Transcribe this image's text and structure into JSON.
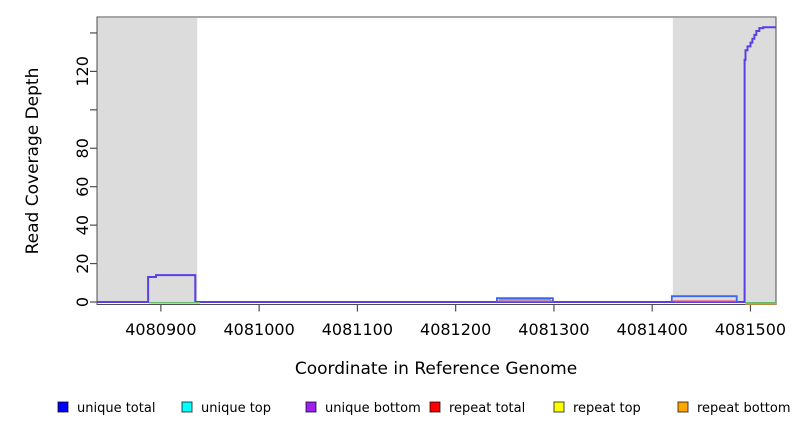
{
  "chart_data": {
    "type": "line",
    "title": "",
    "xlabel": "Coordinate in Reference Genome",
    "ylabel": "Read Coverage Depth",
    "xlim": [
      4080835,
      4081526
    ],
    "ylim": [
      -1.3,
      148.3
    ],
    "x_ticks": [
      4080900,
      4081000,
      4081100,
      4081200,
      4081300,
      4081400,
      4081500
    ],
    "y_ticks_all": [
      0,
      20,
      40,
      60,
      80,
      100,
      120,
      140
    ],
    "y_ticks_labeled": [
      0,
      20,
      40,
      60,
      80,
      120
    ],
    "grid": false,
    "background_color": "#ffffff",
    "frame_color": "#4d4d4d",
    "shaded_regions": {
      "color": "#dcdcdc",
      "comment": "repeat-masked flanking regions",
      "ranges": [
        [
          4080835,
          4080937
        ],
        [
          4081421,
          4081526
        ]
      ]
    },
    "legend": {
      "position": "bottom",
      "items": [
        {
          "label": "unique total",
          "color": "#0000ff"
        },
        {
          "label": "unique top",
          "color": "#00ffff"
        },
        {
          "label": "unique bottom",
          "color": "#a020f0"
        },
        {
          "label": "repeat total",
          "color": "#ff0000"
        },
        {
          "label": "repeat top",
          "color": "#ffff00"
        },
        {
          "label": "repeat bottom",
          "color": "#ffa500"
        }
      ],
      "swatch_border_color": "rgba(0,0,0,0.6)"
    },
    "lines": [
      {
        "name": "unique-bottom-main",
        "legend_ref": "unique bottom",
        "color": "#5b3fe4",
        "width": 2,
        "points": [
          [
            4080835,
            0
          ],
          [
            4080887,
            0
          ],
          [
            4080887,
            13
          ],
          [
            4080895,
            13
          ],
          [
            4080895,
            14
          ],
          [
            4080935,
            14
          ],
          [
            4080935,
            0
          ],
          [
            4081494,
            0
          ],
          [
            4081494,
            126
          ],
          [
            4081495,
            126
          ],
          [
            4081495,
            131
          ],
          [
            4081497,
            131
          ],
          [
            4081497,
            133
          ],
          [
            4081500,
            133
          ],
          [
            4081500,
            135
          ],
          [
            4081502,
            135
          ],
          [
            4081502,
            137
          ],
          [
            4081504,
            137
          ],
          [
            4081504,
            139
          ],
          [
            4081506,
            139
          ],
          [
            4081506,
            141
          ],
          [
            4081509,
            141
          ],
          [
            4081509,
            142.5
          ],
          [
            4081513,
            142.5
          ],
          [
            4081513,
            143
          ],
          [
            4081526,
            143
          ]
        ]
      },
      {
        "name": "repeat-top-zero-left",
        "legend_ref": "repeat top",
        "color": "#63bb6a",
        "width": 1.5,
        "points": [
          [
            4080888,
            -0.4
          ],
          [
            4080940,
            -0.4
          ]
        ]
      },
      {
        "name": "repeat-top-zero-right",
        "legend_ref": "repeat top",
        "color": "#63bb6a",
        "width": 1.5,
        "points": [
          [
            4081495,
            -0.4
          ],
          [
            4081526,
            -0.4
          ]
        ]
      },
      {
        "name": "repeat-bottom-zero-right",
        "legend_ref": "repeat bottom",
        "color": "#d9a441",
        "width": 1.3,
        "points": [
          [
            4081495,
            -1.1
          ],
          [
            4081526,
            -1.1
          ]
        ]
      },
      {
        "name": "repeat-total-mid",
        "legend_ref": "repeat total",
        "color": "#f08896",
        "width": 1.4,
        "points": [
          [
            4081243,
            0.7
          ],
          [
            4081298,
            0.7
          ]
        ]
      },
      {
        "name": "repeat-total-right",
        "legend_ref": "repeat total",
        "color": "#f08896",
        "width": 1.4,
        "points": [
          [
            4081421,
            0.7
          ],
          [
            4081485,
            0.7
          ]
        ]
      },
      {
        "name": "unique-top-mid",
        "legend_ref": "unique top",
        "color": "#2fc7d8",
        "width": 1.4,
        "points": [
          [
            4081244,
            1.3
          ],
          [
            4081297,
            1.3
          ]
        ]
      },
      {
        "name": "unique-total-mid",
        "legend_ref": "unique total",
        "color": "#3b66ee",
        "width": 1.8,
        "points": [
          [
            4081242,
            0
          ],
          [
            4081242,
            2
          ],
          [
            4081299,
            2
          ],
          [
            4081299,
            0
          ]
        ]
      },
      {
        "name": "unique-total-right",
        "legend_ref": "unique total",
        "color": "#3b66ee",
        "width": 1.8,
        "points": [
          [
            4081420,
            0
          ],
          [
            4081420,
            3
          ],
          [
            4081486,
            3
          ],
          [
            4081486,
            0
          ]
        ]
      }
    ]
  }
}
